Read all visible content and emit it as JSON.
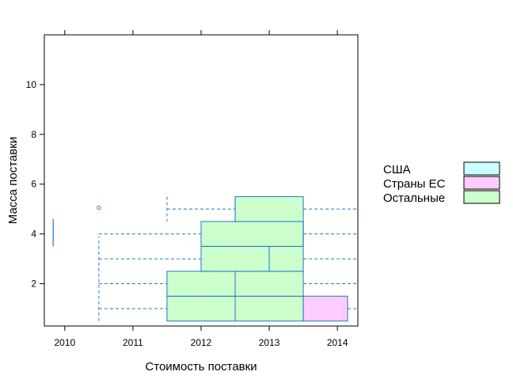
{
  "chart_data": {
    "type": "boxplot",
    "xlabel": "Стоимость поставки",
    "ylabel": "Масса поставки",
    "xlim": [
      2009.7,
      2014.3
    ],
    "ylim": [
      0.3,
      12
    ],
    "x_ticks": [
      2010,
      2011,
      2012,
      2013,
      2014
    ],
    "y_ticks": [
      2,
      4,
      6,
      8,
      10
    ],
    "grid": false,
    "legend_position": "right",
    "colors": {
      "line": "#1f78c8",
      "США": "#ccffff",
      "Страны ЕС": "#ffccff",
      "Остальные": "#ccffcc"
    },
    "legend": [
      {
        "name": "США",
        "color": "#ccffff"
      },
      {
        "name": "Страны ЕС",
        "color": "#ffccff"
      },
      {
        "name": "Остальные",
        "color": "#ccffcc"
      }
    ],
    "rows": [
      {
        "y": 1,
        "whisker_low": 2010.5,
        "q1": 2011.5,
        "median": 2012.5,
        "q3": 2013.5,
        "whisker_high": 2014.3
      },
      {
        "y": 2,
        "whisker_low": 2010.5,
        "q1": 2011.5,
        "median": 2012.5,
        "q3": 2013.5,
        "whisker_high": 2014.3
      },
      {
        "y": 3,
        "whisker_low": 2010.5,
        "q1": 2012.0,
        "median": 2013.0,
        "q3": 2013.5,
        "whisker_high": 2014.3
      },
      {
        "y": 4,
        "whisker_low": 2010.5,
        "q1": 2012.0,
        "median": 2013.5,
        "q3": 2013.5,
        "whisker_high": 2014.3
      },
      {
        "y": 5,
        "whisker_low": 2011.5,
        "q1": 2012.5,
        "median": 2012.5,
        "q3": 2013.5,
        "whisker_high": 2014.3
      }
    ],
    "extra_boxes": [
      {
        "y": 1,
        "x_from": 2013.5,
        "x_to": 2014.15,
        "group": "Страны ЕС"
      }
    ],
    "outliers": [
      {
        "x": 2010.5,
        "y": 5.05
      }
    ],
    "vertical_segments": [
      {
        "x": 2009.83,
        "y_from": 3.5,
        "y_to": 4.6
      }
    ]
  }
}
